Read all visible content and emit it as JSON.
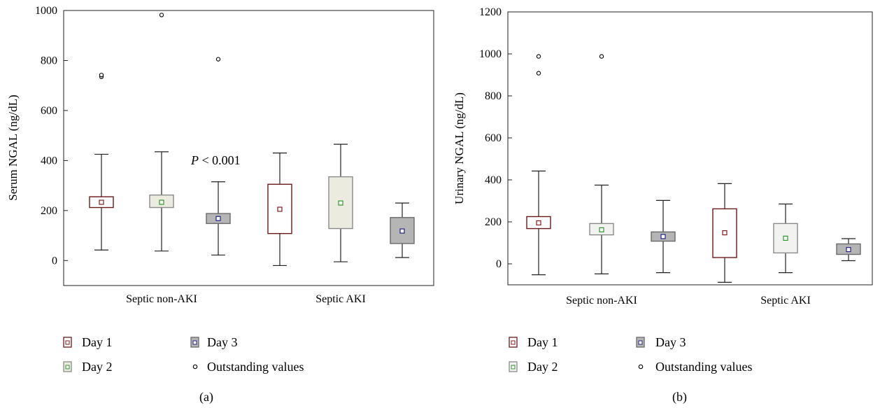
{
  "chart_data": [
    {
      "type": "box",
      "panel_label": "(a)",
      "ylabel": "Serum NGAL (ng/dL)",
      "ylim": [
        -100,
        1000
      ],
      "yticks": [
        0,
        200,
        400,
        600,
        800,
        1000
      ],
      "categories": [
        "Septic non-AKI",
        "Septic AKI"
      ],
      "annotation": {
        "italic": "P",
        "rest": " < 0.001"
      },
      "series": [
        {
          "name": "Day 1",
          "color_fill": "#ffffff",
          "color_edge": "#6b1a1a",
          "marker_color": "#8b1a1a",
          "boxes": [
            {
              "whisker_low": 42,
              "q1": 212,
              "median": 233,
              "q3": 255,
              "whisker_high": 425,
              "outliers": [
                735,
                742
              ]
            },
            {
              "whisker_low": -20,
              "q1": 108,
              "median": 205,
              "q3": 305,
              "whisker_high": 430,
              "outliers": []
            }
          ]
        },
        {
          "name": "Day 2",
          "color_fill": "#ecebdf",
          "color_edge": "#8a8a8a",
          "marker_color": "#2a9a2a",
          "boxes": [
            {
              "whisker_low": 38,
              "q1": 212,
              "median": 233,
              "q3": 262,
              "whisker_high": 435,
              "outliers": [
                982
              ]
            },
            {
              "whisker_low": -5,
              "q1": 128,
              "median": 230,
              "q3": 335,
              "whisker_high": 465,
              "outliers": []
            }
          ]
        },
        {
          "name": "Day 3",
          "color_fill": "#b5b5b5",
          "color_edge": "#6a6a6a",
          "marker_color": "#22228a",
          "boxes": [
            {
              "whisker_low": 22,
              "q1": 148,
              "median": 168,
              "q3": 188,
              "whisker_high": 315,
              "outliers": [
                805
              ]
            },
            {
              "whisker_low": 12,
              "q1": 68,
              "median": 118,
              "q3": 172,
              "whisker_high": 230,
              "outliers": []
            }
          ]
        }
      ]
    },
    {
      "type": "box",
      "panel_label": "(b)",
      "ylabel": "Urinary NGAL (ng/dL)",
      "ylim": [
        -100,
        1200
      ],
      "yticks": [
        0,
        200,
        400,
        600,
        800,
        1000,
        1200
      ],
      "categories": [
        "Septic non-AKI",
        "Septic AKI"
      ],
      "series": [
        {
          "name": "Day 1",
          "color_fill": "#ffffff",
          "color_edge": "#6b1a1a",
          "marker_color": "#8b1a1a",
          "boxes": [
            {
              "whisker_low": -52,
              "q1": 168,
              "median": 195,
              "q3": 225,
              "whisker_high": 442,
              "outliers": [
                908,
                988
              ]
            },
            {
              "whisker_low": -88,
              "q1": 30,
              "median": 148,
              "q3": 262,
              "whisker_high": 382,
              "outliers": []
            }
          ]
        },
        {
          "name": "Day 2",
          "color_fill": "#f2f2f0",
          "color_edge": "#8a8a8a",
          "marker_color": "#2a9a2a",
          "boxes": [
            {
              "whisker_low": -48,
              "q1": 138,
              "median": 162,
              "q3": 192,
              "whisker_high": 375,
              "outliers": [
                988
              ]
            },
            {
              "whisker_low": -42,
              "q1": 52,
              "median": 122,
              "q3": 192,
              "whisker_high": 285,
              "outliers": []
            }
          ]
        },
        {
          "name": "Day 3",
          "color_fill": "#b5b5b5",
          "color_edge": "#6a6a6a",
          "marker_color": "#22228a",
          "boxes": [
            {
              "whisker_low": -42,
              "q1": 108,
              "median": 130,
              "q3": 152,
              "whisker_high": 302,
              "outliers": []
            },
            {
              "whisker_low": 15,
              "q1": 45,
              "median": 68,
              "q3": 95,
              "whisker_high": 120,
              "outliers": []
            }
          ]
        }
      ]
    }
  ],
  "legend": {
    "day1": "Day 1",
    "day2": "Day 2",
    "day3": "Day 3",
    "outstanding": "Outstanding values"
  }
}
